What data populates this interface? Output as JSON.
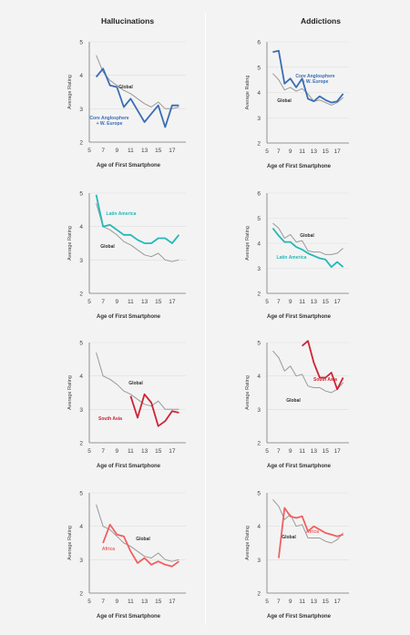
{
  "columns": {
    "left_title": "Hallucinations",
    "right_title": "Addictions"
  },
  "colors": {
    "global": "#999999",
    "grid": "#dddddd",
    "axis": "#777777"
  },
  "chart_data": [
    {
      "type": "line",
      "panel": "hallucinations-core-anglosphere",
      "xlabel": "Age of First Smartphone",
      "ylabel": "Average Rating",
      "ylim": [
        2,
        5
      ],
      "yticks": [
        2,
        3,
        4,
        5
      ],
      "xticks": [
        5,
        7,
        9,
        11,
        13,
        15,
        17
      ],
      "xlim": [
        5,
        19
      ],
      "series": [
        {
          "name": "Global",
          "color": "#999999",
          "x": [
            6,
            7,
            8,
            9,
            10,
            11,
            12,
            13,
            14,
            15,
            16,
            17,
            18
          ],
          "y": [
            4.6,
            4.1,
            3.85,
            3.7,
            3.55,
            3.45,
            3.3,
            3.15,
            3.05,
            3.2,
            3.0,
            3.0,
            3.05
          ]
        },
        {
          "name": "Core Anglosphere\n+ W. Europe",
          "color": "#3a6db5",
          "x": [
            6,
            7,
            8,
            9,
            10,
            11,
            12,
            13,
            14,
            15,
            16,
            17,
            18
          ],
          "y": [
            3.95,
            4.2,
            3.7,
            3.65,
            3.05,
            3.3,
            2.95,
            2.6,
            2.85,
            3.1,
            2.45,
            3.1,
            3.1
          ]
        }
      ]
    },
    {
      "type": "line",
      "panel": "addictions-core-anglosphere",
      "xlabel": "Age of First Smartphone",
      "ylabel": "Average Rating",
      "ylim": [
        2,
        6
      ],
      "yticks": [
        2,
        3,
        4,
        5,
        6
      ],
      "xticks": [
        5,
        7,
        9,
        11,
        13,
        15,
        17
      ],
      "xlim": [
        5,
        19
      ],
      "series": [
        {
          "name": "Global",
          "color": "#999999",
          "x": [
            6,
            7,
            8,
            9,
            10,
            11,
            12,
            13,
            14,
            15,
            16,
            17,
            18
          ],
          "y": [
            4.75,
            4.5,
            4.1,
            4.2,
            4.05,
            4.15,
            3.95,
            3.65,
            3.7,
            3.6,
            3.5,
            3.6,
            3.8
          ]
        },
        {
          "name": "Core Anglosphere\n+ W. Europe",
          "color": "#3a6db5",
          "x": [
            6,
            7,
            8,
            9,
            10,
            11,
            12,
            13,
            14,
            15,
            16,
            17,
            18
          ],
          "y": [
            5.6,
            5.65,
            4.35,
            4.55,
            4.2,
            4.55,
            3.75,
            3.65,
            3.85,
            3.7,
            3.6,
            3.65,
            3.95
          ]
        }
      ]
    },
    {
      "type": "line",
      "panel": "hallucinations-latin-america",
      "xlabel": "Age of First Smartphone",
      "ylabel": "Average Rating",
      "ylim": [
        2,
        5
      ],
      "yticks": [
        2,
        3,
        4,
        5
      ],
      "xticks": [
        5,
        7,
        9,
        11,
        13,
        15,
        17
      ],
      "xlim": [
        5,
        19
      ],
      "series": [
        {
          "name": "Global",
          "color": "#999999",
          "x": [
            6,
            7,
            8,
            9,
            10,
            11,
            12,
            13,
            14,
            15,
            16,
            17,
            18
          ],
          "y": [
            4.7,
            4.0,
            3.9,
            3.75,
            3.55,
            3.45,
            3.3,
            3.15,
            3.1,
            3.2,
            3.0,
            2.95,
            3.0
          ]
        },
        {
          "name": "Latin America",
          "color": "#25b8b8",
          "x": [
            6,
            7,
            8,
            9,
            10,
            11,
            12,
            13,
            14,
            15,
            16,
            17,
            18
          ],
          "y": [
            4.95,
            4.0,
            4.05,
            3.9,
            3.75,
            3.75,
            3.6,
            3.5,
            3.5,
            3.65,
            3.65,
            3.5,
            3.75
          ]
        }
      ]
    },
    {
      "type": "line",
      "panel": "addictions-latin-america",
      "xlabel": "Age of First Smartphone",
      "ylabel": "Average Rating",
      "ylim": [
        2,
        6
      ],
      "yticks": [
        2,
        3,
        4,
        5,
        6
      ],
      "xticks": [
        5,
        7,
        9,
        11,
        13,
        15,
        17
      ],
      "xlim": [
        5,
        19
      ],
      "series": [
        {
          "name": "Global",
          "color": "#999999",
          "x": [
            6,
            7,
            8,
            9,
            10,
            11,
            12,
            13,
            14,
            15,
            16,
            17,
            18
          ],
          "y": [
            4.8,
            4.6,
            4.2,
            4.35,
            4.05,
            4.1,
            3.7,
            3.65,
            3.65,
            3.55,
            3.55,
            3.6,
            3.8
          ]
        },
        {
          "name": "Latin America",
          "color": "#25b8b8",
          "x": [
            6,
            7,
            8,
            9,
            10,
            11,
            12,
            13,
            14,
            15,
            16,
            17,
            18
          ],
          "y": [
            4.6,
            4.3,
            4.05,
            4.05,
            3.85,
            3.75,
            3.6,
            3.5,
            3.4,
            3.35,
            3.05,
            3.25,
            3.05
          ]
        }
      ]
    },
    {
      "type": "line",
      "panel": "hallucinations-south-asia",
      "xlabel": "Age of First Smartphone",
      "ylabel": "Average Rating",
      "ylim": [
        2,
        5
      ],
      "yticks": [
        2,
        3,
        4,
        5
      ],
      "xticks": [
        5,
        7,
        9,
        11,
        13,
        15,
        17
      ],
      "xlim": [
        5,
        19
      ],
      "series": [
        {
          "name": "Global",
          "color": "#999999",
          "x": [
            6,
            7,
            8,
            9,
            10,
            11,
            12,
            13,
            14,
            15,
            16,
            17,
            18
          ],
          "y": [
            4.7,
            4.0,
            3.9,
            3.75,
            3.55,
            3.45,
            3.3,
            3.15,
            3.1,
            3.25,
            3.0,
            3.0,
            3.0
          ]
        },
        {
          "name": "South Asia",
          "color": "#cc2535",
          "x": [
            11,
            12,
            13,
            14,
            15,
            16,
            17,
            18
          ],
          "y": [
            3.4,
            2.75,
            3.45,
            3.2,
            2.5,
            2.65,
            2.95,
            2.9
          ]
        }
      ]
    },
    {
      "type": "line",
      "panel": "addictions-south-asia",
      "xlabel": "Age of First Smartphone",
      "ylabel": "Average Rating",
      "ylim": [
        2,
        5
      ],
      "yticks": [
        2,
        3,
        4,
        5
      ],
      "xticks": [
        5,
        7,
        9,
        11,
        13,
        15,
        17
      ],
      "xlim": [
        5,
        19
      ],
      "series": [
        {
          "name": "Global",
          "color": "#999999",
          "x": [
            6,
            7,
            8,
            9,
            10,
            11,
            12,
            13,
            14,
            15,
            16,
            17,
            18
          ],
          "y": [
            4.75,
            4.55,
            4.15,
            4.3,
            4.0,
            4.05,
            3.7,
            3.65,
            3.65,
            3.55,
            3.5,
            3.6,
            3.8
          ]
        },
        {
          "name": "South Asia",
          "color": "#cc2535",
          "x": [
            11,
            12,
            13,
            14,
            15,
            16,
            17,
            18
          ],
          "y": [
            4.9,
            5.05,
            4.4,
            3.95,
            3.95,
            4.1,
            3.6,
            3.95
          ]
        }
      ]
    },
    {
      "type": "line",
      "panel": "hallucinations-africa",
      "xlabel": "Age of First Smartphone",
      "ylabel": "Average Rating",
      "ylim": [
        2,
        5
      ],
      "yticks": [
        2,
        3,
        4,
        5
      ],
      "xticks": [
        5,
        7,
        9,
        11,
        13,
        15,
        17
      ],
      "xlim": [
        5,
        19
      ],
      "series": [
        {
          "name": "Global",
          "color": "#999999",
          "x": [
            6,
            7,
            8,
            9,
            10,
            11,
            12,
            13,
            14,
            15,
            16,
            17,
            18
          ],
          "y": [
            4.65,
            4.0,
            3.9,
            3.7,
            3.5,
            3.4,
            3.25,
            3.1,
            3.05,
            3.2,
            3.0,
            2.95,
            3.0
          ]
        },
        {
          "name": "Africa",
          "color": "#f06060",
          "x": [
            7,
            8,
            9,
            10,
            11,
            12,
            13,
            14,
            15,
            16,
            17,
            18
          ],
          "y": [
            3.5,
            4.05,
            3.75,
            3.7,
            3.25,
            2.9,
            3.05,
            2.85,
            2.95,
            2.85,
            2.8,
            2.95
          ]
        }
      ]
    },
    {
      "type": "line",
      "panel": "addictions-africa",
      "xlabel": "Age of First Smartphone",
      "ylabel": "Average Rating",
      "ylim": [
        2,
        5
      ],
      "yticks": [
        2,
        3,
        4,
        5
      ],
      "xticks": [
        5,
        7,
        9,
        11,
        13,
        15,
        17
      ],
      "xlim": [
        5,
        19
      ],
      "series": [
        {
          "name": "Global",
          "color": "#999999",
          "x": [
            6,
            7,
            8,
            9,
            10,
            11,
            12,
            13,
            14,
            15,
            16,
            17,
            18
          ],
          "y": [
            4.8,
            4.6,
            4.2,
            4.35,
            4.0,
            4.05,
            3.65,
            3.65,
            3.65,
            3.55,
            3.5,
            3.6,
            3.8
          ]
        },
        {
          "name": "Africa",
          "color": "#f06060",
          "x": [
            7,
            8,
            9,
            10,
            11,
            12,
            13,
            14,
            15,
            16,
            17,
            18
          ],
          "y": [
            3.05,
            4.55,
            4.3,
            4.25,
            4.3,
            3.85,
            4.0,
            3.9,
            3.8,
            3.75,
            3.7,
            3.75
          ]
        }
      ]
    }
  ]
}
